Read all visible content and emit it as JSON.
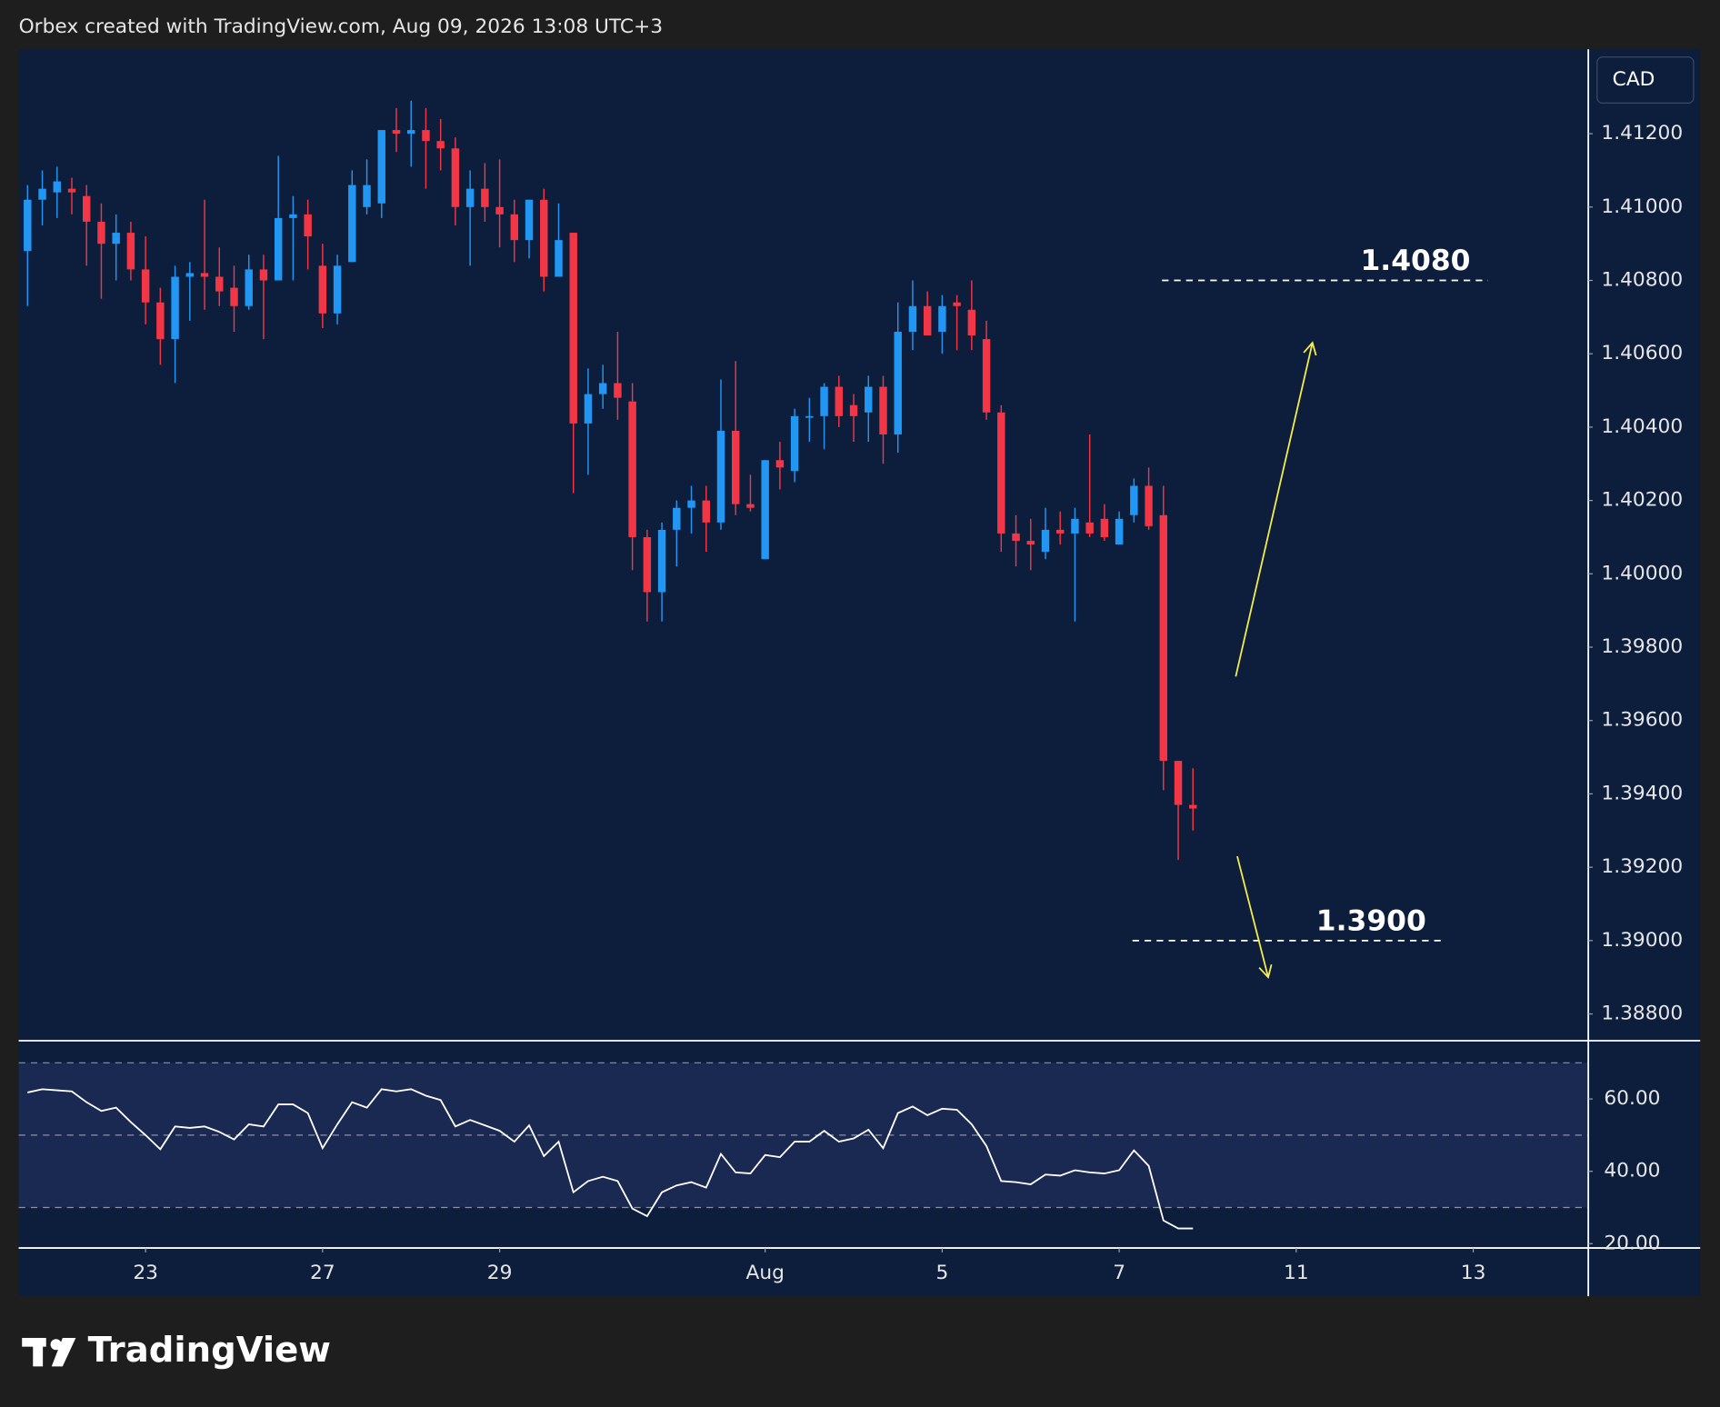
{
  "header": "Orbex created with TradingView.com, Aug 09, 2026 13:08 UTC+3",
  "logo": "TradingView",
  "chart_data": [
    {
      "type": "candlestick",
      "y_axis_label": "CAD",
      "up_color": "#2196f3",
      "down_color": "#f23645",
      "open": [
        1.4088,
        1.4102,
        1.4104,
        1.4105,
        1.4103,
        1.4096,
        1.409,
        1.4093,
        1.4083,
        1.4074,
        1.4064,
        1.4081,
        1.4082,
        1.4081,
        1.4078,
        1.4073,
        1.4083,
        1.408,
        1.4097,
        1.4098,
        1.4084,
        1.4071,
        1.4085,
        1.41,
        1.4101,
        1.4121,
        1.412,
        1.4121,
        1.4118,
        1.4116,
        1.41,
        1.4105,
        1.41,
        1.4098,
        1.4091,
        1.4102,
        1.4081,
        1.4093,
        1.4041,
        1.4049,
        1.4052,
        1.4047,
        1.401,
        1.3995,
        1.4012,
        1.4018,
        1.402,
        1.4014,
        1.4039,
        1.4019,
        1.4004,
        1.4031,
        1.4028,
        1.4043,
        1.4043,
        1.4051,
        1.4046,
        1.4044,
        1.4051,
        1.4038,
        1.4066,
        1.4073,
        1.4066,
        1.4074,
        1.4072,
        1.4064,
        1.4044,
        1.4011,
        1.4009,
        1.4006,
        1.4012,
        1.4011,
        1.4014,
        1.4015,
        1.4008,
        1.4016,
        1.4024,
        1.4016,
        1.3949,
        1.3937
      ],
      "high": [
        1.4106,
        1.411,
        1.4111,
        1.4108,
        1.4106,
        1.4101,
        1.4098,
        1.4096,
        1.4092,
        1.4078,
        1.4084,
        1.4085,
        1.4102,
        1.4089,
        1.4084,
        1.4087,
        1.4087,
        1.4114,
        1.4103,
        1.4102,
        1.409,
        1.4087,
        1.411,
        1.4113,
        1.4121,
        1.4127,
        1.4129,
        1.4127,
        1.4124,
        1.4119,
        1.411,
        1.4112,
        1.4113,
        1.4102,
        1.4102,
        1.4105,
        1.4101,
        1.4093,
        1.4056,
        1.4057,
        1.4066,
        1.4052,
        1.4012,
        1.4014,
        1.402,
        1.4024,
        1.4024,
        1.4053,
        1.4058,
        1.4027,
        1.4031,
        1.4036,
        1.4045,
        1.4048,
        1.4052,
        1.4054,
        1.4049,
        1.4054,
        1.4054,
        1.4074,
        1.408,
        1.4077,
        1.4076,
        1.4076,
        1.408,
        1.4069,
        1.4046,
        1.4016,
        1.4015,
        1.4018,
        1.4017,
        1.4018,
        1.4038,
        1.4019,
        1.4017,
        1.4026,
        1.4029,
        1.4024,
        1.3949,
        1.3947
      ],
      "low": [
        1.4073,
        1.4095,
        1.4097,
        1.4098,
        1.4084,
        1.4075,
        1.408,
        1.408,
        1.4068,
        1.4057,
        1.4052,
        1.4069,
        1.4072,
        1.4073,
        1.4066,
        1.4072,
        1.4064,
        1.408,
        1.408,
        1.4083,
        1.4067,
        1.4068,
        1.4085,
        1.4098,
        1.4097,
        1.4115,
        1.4111,
        1.4105,
        1.411,
        1.4095,
        1.4084,
        1.4096,
        1.4089,
        1.4085,
        1.4086,
        1.4077,
        1.4081,
        1.4022,
        1.4027,
        1.4045,
        1.4042,
        1.4001,
        1.3987,
        1.3987,
        1.4002,
        1.4011,
        1.4006,
        1.4012,
        1.4016,
        1.4017,
        1.4004,
        1.4023,
        1.4025,
        1.4036,
        1.4034,
        1.404,
        1.4036,
        1.4036,
        1.403,
        1.4033,
        1.4061,
        1.4065,
        1.406,
        1.4061,
        1.4061,
        1.4042,
        1.4006,
        1.4002,
        1.4001,
        1.4004,
        1.4008,
        1.3987,
        1.401,
        1.4009,
        1.4008,
        1.4014,
        1.4012,
        1.3941,
        1.3922,
        1.393
      ],
      "close": [
        1.4102,
        1.4105,
        1.4107,
        1.4104,
        1.4096,
        1.409,
        1.4093,
        1.4083,
        1.4074,
        1.4064,
        1.4081,
        1.4082,
        1.4081,
        1.4077,
        1.4073,
        1.4083,
        1.408,
        1.4097,
        1.4098,
        1.4092,
        1.4071,
        1.4084,
        1.4106,
        1.4106,
        1.4121,
        1.412,
        1.4121,
        1.4118,
        1.4116,
        1.41,
        1.4105,
        1.41,
        1.4098,
        1.4091,
        1.4102,
        1.4081,
        1.4091,
        1.4041,
        1.4049,
        1.4052,
        1.4048,
        1.401,
        1.3995,
        1.4012,
        1.4018,
        1.402,
        1.4014,
        1.4039,
        1.4019,
        1.4018,
        1.4031,
        1.4029,
        1.4043,
        1.4043,
        1.4051,
        1.4043,
        1.4043,
        1.4051,
        1.4038,
        1.4066,
        1.4073,
        1.4065,
        1.4073,
        1.4073,
        1.4065,
        1.4044,
        1.4011,
        1.4009,
        1.4008,
        1.4012,
        1.4011,
        1.4015,
        1.4011,
        1.401,
        1.4015,
        1.4024,
        1.4013,
        1.3949,
        1.3937,
        1.3936
      ],
      "xlim": [
        -0.6,
        105.8
      ],
      "xticks": [
        {
          "value": 8,
          "label": "23"
        },
        {
          "value": 20,
          "label": "27"
        },
        {
          "value": 32,
          "label": "29"
        },
        {
          "value": 50,
          "label": "Aug"
        },
        {
          "value": 62,
          "label": "5"
        },
        {
          "value": 74,
          "label": "7"
        },
        {
          "value": 86,
          "label": "11"
        },
        {
          "value": 98,
          "label": "13"
        }
      ],
      "ylim": [
        1.3873,
        1.4143
      ],
      "yticks": [
        {
          "value": 1.388,
          "label": "1.38800"
        },
        {
          "value": 1.39,
          "label": "1.39000"
        },
        {
          "value": 1.392,
          "label": "1.39200"
        },
        {
          "value": 1.394,
          "label": "1.39400"
        },
        {
          "value": 1.396,
          "label": "1.39600"
        },
        {
          "value": 1.398,
          "label": "1.39800"
        },
        {
          "value": 1.4,
          "label": "1.40000"
        },
        {
          "value": 1.402,
          "label": "1.40200"
        },
        {
          "value": 1.404,
          "label": "1.40400"
        },
        {
          "value": 1.406,
          "label": "1.40600"
        },
        {
          "value": 1.408,
          "label": "1.40800"
        },
        {
          "value": 1.41,
          "label": "1.41000"
        },
        {
          "value": 1.412,
          "label": "1.41200"
        }
      ],
      "annotations": [
        {
          "text": "1.4080",
          "y": 1.408,
          "x": [
            76.9,
            99
          ]
        },
        {
          "text": "1.3900",
          "y": 1.39,
          "x": [
            74.9,
            96
          ]
        }
      ],
      "arrows": [
        {
          "from": [
            81.9,
            1.3972
          ],
          "to": [
            87.1,
            1.4063
          ]
        },
        {
          "from": [
            82,
            1.3923
          ],
          "to": [
            84.1,
            1.389
          ]
        }
      ],
      "arrow_color": "#f5ec4b"
    },
    {
      "type": "line",
      "color": "#ffffff",
      "values": [
        61.8,
        62.7,
        62.4,
        62.1,
        59.1,
        56.7,
        57.6,
        53.6,
        50.0,
        46.1,
        52.4,
        52.0,
        52.4,
        50.9,
        48.8,
        53.0,
        52.4,
        58.5,
        58.5,
        56.1,
        46.4,
        53.0,
        59.1,
        57.6,
        62.7,
        62.1,
        62.7,
        60.9,
        59.7,
        52.4,
        54.2,
        52.7,
        51.2,
        48.2,
        52.7,
        44.2,
        48.2,
        34.2,
        37.3,
        38.5,
        37.3,
        29.7,
        27.6,
        34.2,
        36.1,
        37.0,
        35.5,
        44.8,
        39.7,
        39.4,
        44.5,
        43.9,
        48.2,
        48.2,
        51.2,
        48.2,
        49.1,
        51.5,
        46.4,
        56.1,
        57.9,
        55.5,
        57.3,
        57.0,
        53.0,
        47.0,
        37.3,
        37.0,
        36.4,
        39.1,
        38.8,
        40.3,
        39.7,
        39.4,
        40.3,
        45.8,
        41.5,
        26.4,
        24.2,
        24.2
      ],
      "ylim": [
        18.8,
        75.8
      ],
      "yticks": [
        {
          "value": 20,
          "label": "20.00"
        },
        {
          "value": 40,
          "label": "40.00"
        },
        {
          "value": 60,
          "label": "60.00"
        }
      ],
      "levels": [
        70,
        50,
        30
      ]
    }
  ]
}
